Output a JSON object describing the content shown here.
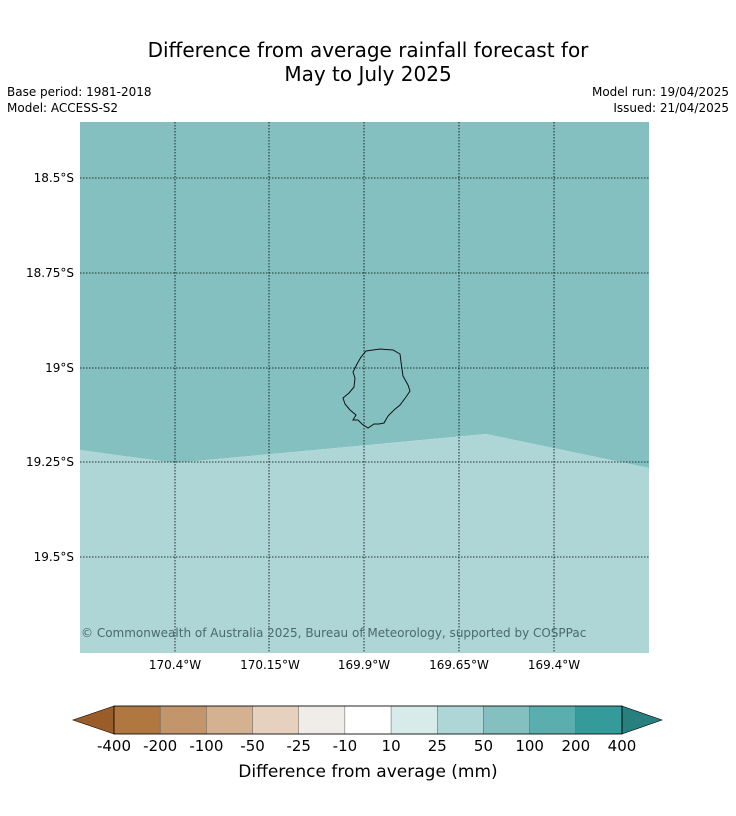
{
  "title": {
    "line1": "Difference from average rainfall forecast for",
    "line2": "May to July 2025"
  },
  "meta": {
    "base_period": "Base period: 1981-2018",
    "model": "Model: ACCESS-S2",
    "model_run": "Model run: 19/04/2025",
    "issued": "Issued: 21/04/2025"
  },
  "map": {
    "lat_labels": [
      "18.5°S",
      "18.75°S",
      "19°S",
      "19.25°S",
      "19.5°S"
    ],
    "lon_labels": [
      "170.4°W",
      "170.15°W",
      "169.9°W",
      "169.65°W",
      "169.4°W"
    ],
    "regions": [
      {
        "name": "upper",
        "category": "50 to 100",
        "color": "#85c0c0"
      },
      {
        "name": "lower",
        "category": "25 to 50",
        "color": "#aed6d6"
      }
    ],
    "copyright": "© Commonwealth of Australia 2025, Bureau of Meteorology, supported by COSPPac"
  },
  "colorbar": {
    "title": "Difference from average (mm)",
    "ticks": [
      "-400",
      "-200",
      "-100",
      "-50",
      "-25",
      "-10",
      "10",
      "25",
      "50",
      "100",
      "200",
      "400"
    ],
    "colors": [
      "#9a5d29",
      "#b07740",
      "#c2956b",
      "#d4b190",
      "#e6d0be",
      "#f0ece8",
      "#ffffff",
      "#d6ebea",
      "#aed6d6",
      "#85c0c0",
      "#5aaeae",
      "#359a9a",
      "#27807e"
    ]
  }
}
